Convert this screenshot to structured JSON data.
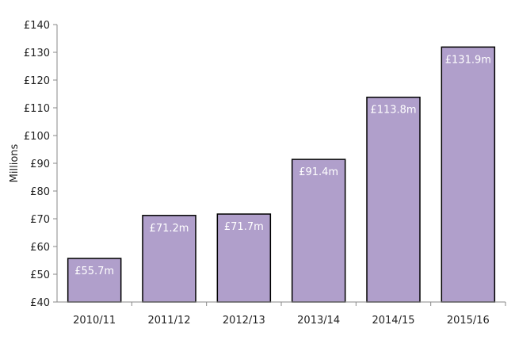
{
  "chart_data": {
    "type": "bar",
    "title": "",
    "xlabel": "",
    "ylabel": "Millions",
    "ylim": [
      40,
      140
    ],
    "ytick_values": [
      40,
      50,
      60,
      70,
      80,
      90,
      100,
      110,
      120,
      130,
      140
    ],
    "ytick_labels": [
      "£40",
      "£50",
      "£60",
      "£70",
      "£80",
      "£90",
      "£100",
      "£110",
      "£120",
      "£130",
      "£140"
    ],
    "categories": [
      "2010/11",
      "2011/12",
      "2012/13",
      "2013/14",
      "2014/15",
      "2015/16"
    ],
    "values": [
      55.7,
      71.2,
      71.7,
      91.4,
      113.8,
      131.9
    ],
    "data_labels": [
      "£55.7m",
      "£71.2m",
      "£71.7m",
      "£91.4m",
      "£113.8m",
      "£131.9m"
    ],
    "grid": false,
    "legend": "none",
    "bar_color": "#b09fcb",
    "bar_edge_color": "#000000"
  }
}
